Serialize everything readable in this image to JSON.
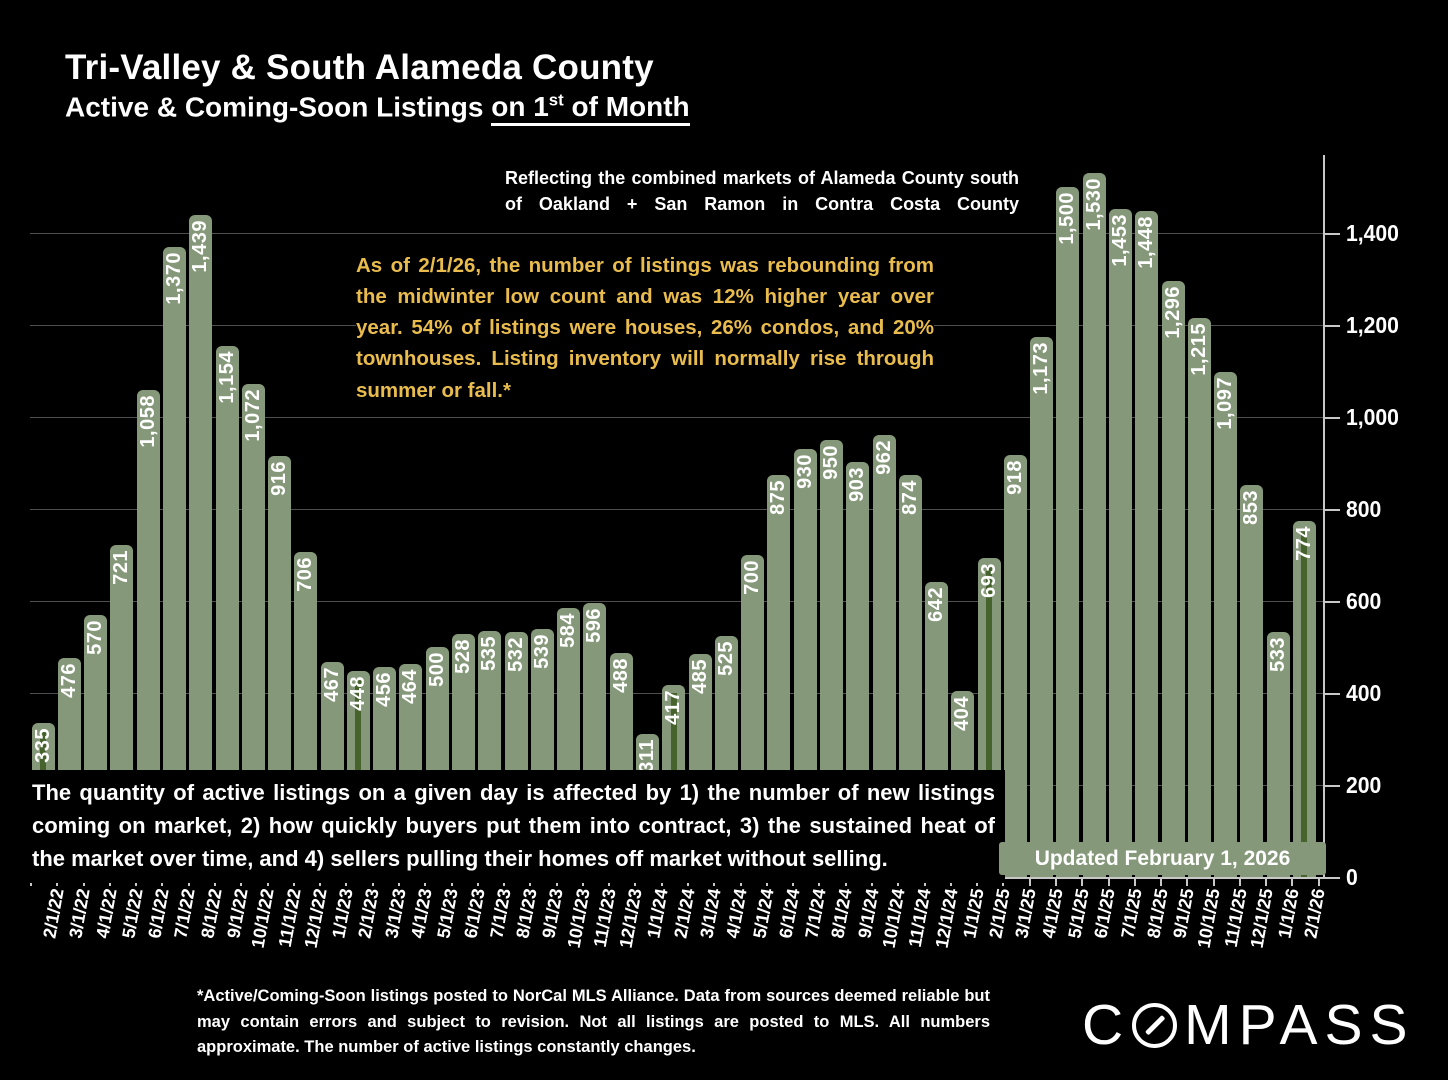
{
  "header": {
    "title": "Tri-Valley & South Alameda County",
    "subtitle_prefix": "Active & Coming-Soon Listings ",
    "subtitle_underline_main": "on 1",
    "subtitle_underline_sup": "st",
    "subtitle_underline_rest": " of Month"
  },
  "annotations": {
    "market_note": "Reflecting the combined markets of Alameda County south of Oakland + San Ramon in Contra Costa County",
    "highlight_note": "As of 2/1/26, the number of listings was rebounding from the midwinter low count and was 12% higher year over year. 54% of listings were houses, 26% condos, and 20% townhouses. Listing inventory will normally rise through summer or fall.*",
    "explainer": "The quantity of active listings on a given day is affected by 1) the number of new listings coming on market, 2) how quickly buyers put them into contract, 3) the sustained heat of the market over time, and 4) sellers pulling their homes off market without selling.",
    "updated": "Updated February 1, 2026",
    "footnote": "*Active/Coming-Soon listings posted to NorCal MLS Alliance. Data from sources deemed reliable but may contain errors and subject to revision. Not all listings are posted to MLS. All numbers approximate. The number of active listings constantly changes."
  },
  "brand": {
    "logo_left": "C",
    "logo_right": "MPASS",
    "logo_o_icon": "compass-needle-o-icon"
  },
  "colors": {
    "background": "#000000",
    "bar": "#86987A",
    "highlight_stripe": "#46632D",
    "gold_text": "#E9BC4D",
    "gridline": "#4e4e4e",
    "axis": "#c8c8c8",
    "updated_box_bg": "#86987A"
  },
  "chart_data": {
    "type": "bar",
    "title": "Tri-Valley & South Alameda County Active & Coming-Soon Listings on 1st of Month",
    "categories": [
      "2/1/22",
      "3/1/22",
      "4/1/22",
      "5/1/22",
      "6/1/22",
      "7/1/22",
      "8/1/22",
      "9/1/22",
      "10/1/22",
      "11/1/22",
      "12/1/22",
      "1/1/23",
      "2/1/23",
      "3/1/23",
      "4/1/23",
      "5/1/23",
      "6/1/23",
      "7/1/23",
      "8/1/23",
      "9/1/23",
      "10/1/23",
      "11/1/23",
      "12/1/23",
      "1/1/24",
      "2/1/24",
      "3/1/24",
      "4/1/24",
      "5/1/24",
      "6/1/24",
      "7/1/24",
      "8/1/24",
      "9/1/24",
      "10/1/24",
      "11/1/24",
      "12/1/24",
      "1/1/25",
      "2/1/25",
      "3/1/25",
      "4/1/25",
      "5/1/25",
      "6/1/25",
      "7/1/25",
      "8/1/25",
      "9/1/25",
      "10/1/25",
      "11/1/25",
      "12/1/25",
      "1/1/26",
      "2/1/26"
    ],
    "values": [
      335,
      476,
      570,
      721,
      1058,
      1370,
      1439,
      1154,
      1072,
      916,
      706,
      467,
      448,
      456,
      464,
      500,
      528,
      535,
      532,
      539,
      584,
      596,
      488,
      311,
      417,
      485,
      525,
      700,
      875,
      930,
      950,
      903,
      962,
      874,
      642,
      404,
      693,
      918,
      1173,
      1500,
      1530,
      1453,
      1448,
      1296,
      1215,
      1097,
      853,
      533,
      774
    ],
    "highlighted_indices": [
      0,
      12,
      24,
      36,
      48
    ],
    "highlighted_categories": [
      "2/1/22",
      "2/1/23",
      "2/1/24",
      "2/1/25",
      "2/1/26"
    ],
    "xlabel": "",
    "ylabel": "",
    "ylim": [
      0,
      1600
    ],
    "yticks": [
      0,
      200,
      400,
      600,
      800,
      1000,
      1200,
      1400
    ],
    "grid": true,
    "legend": false
  }
}
